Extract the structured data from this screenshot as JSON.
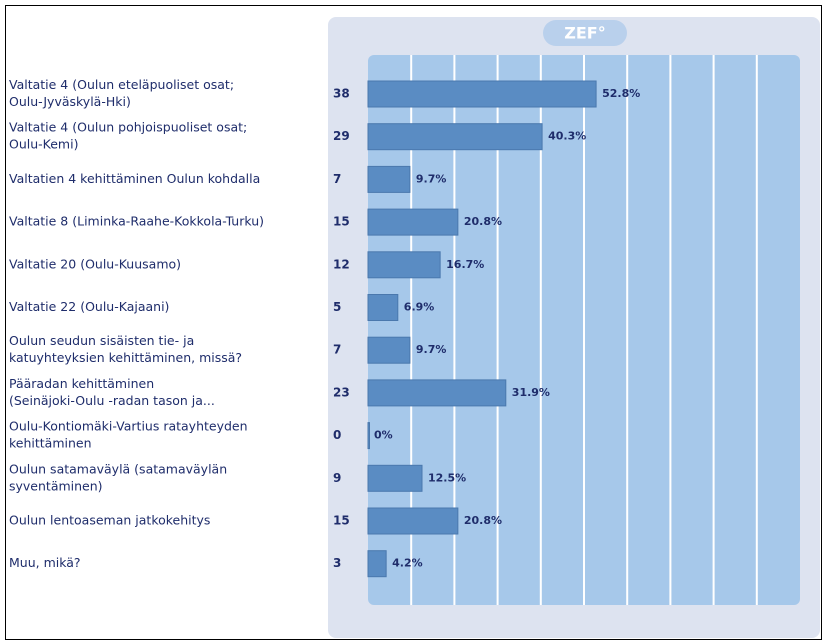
{
  "logo": "ZEF°",
  "chart_data": {
    "type": "bar",
    "categories": [
      [
        "Valtatie 4 (Oulun eteläpuoliset osat;",
        "Oulu-Jyväskylä-Hki)"
      ],
      [
        "Valtatie 4 (Oulun pohjoispuoliset osat;",
        "Oulu-Kemi)"
      ],
      [
        "Valtatien 4 kehittäminen Oulun kohdalla"
      ],
      [
        "Valtatie 8 (Liminka-Raahe-Kokkola-Turku)"
      ],
      [
        "Valtatie 20 (Oulu-Kuusamo)"
      ],
      [
        "Valtatie 22 (Oulu-Kajaani)"
      ],
      [
        "Oulun seudun sisäisten tie- ja",
        "katuyhteyksien kehittäminen, missä?"
      ],
      [
        "Pääradan kehittäminen",
        "(Seinäjoki-Oulu  -radan tason ja..."
      ],
      [
        "Oulu-Kontiomäki-Vartius ratayhteyden",
        "kehittäminen"
      ],
      [
        "Oulun satamaväylä (satamaväylän",
        "syventäminen)"
      ],
      [
        "Oulun lentoaseman jatkokehitys"
      ],
      [
        "Muu, mikä?"
      ]
    ],
    "counts": [
      38,
      29,
      7,
      15,
      12,
      5,
      7,
      23,
      0,
      9,
      15,
      3
    ],
    "values": [
      52.8,
      40.3,
      9.7,
      20.8,
      16.7,
      6.9,
      9.7,
      31.9,
      0,
      12.5,
      20.8,
      4.2
    ],
    "value_labels": [
      "52.8%",
      "40.3%",
      "9.7%",
      "20.8%",
      "16.7%",
      "6.9%",
      "9.7%",
      "31.9%",
      "0%",
      "12.5%",
      "20.8%",
      "4.2%"
    ],
    "color": "#5a8cc3",
    "xlim": [
      0,
      100
    ],
    "xticks": [
      0,
      10,
      20,
      30,
      40,
      50,
      60,
      70,
      80,
      90,
      100
    ],
    "grid": true
  }
}
